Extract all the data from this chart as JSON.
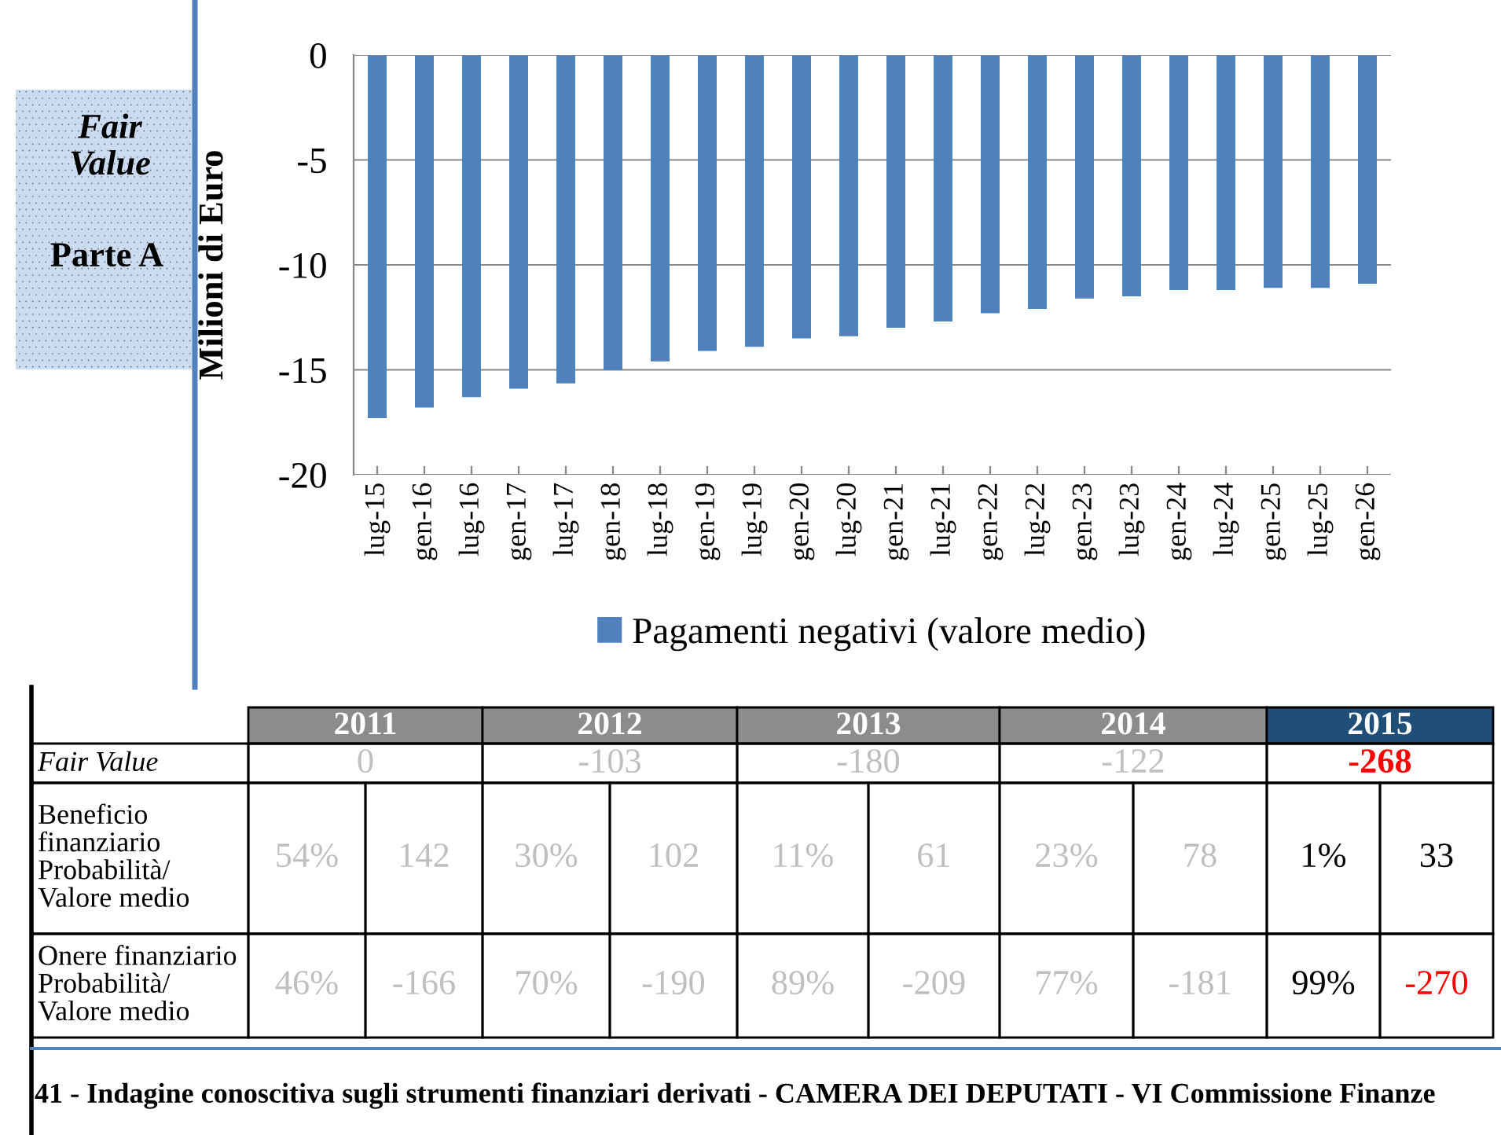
{
  "chart_data": {
    "type": "bar",
    "ylabel": "Milioni di Euro",
    "categories": [
      "lug-15",
      "gen-16",
      "lug-16",
      "gen-17",
      "lug-17",
      "gen-18",
      "lug-18",
      "gen-19",
      "lug-19",
      "gen-20",
      "lug-20",
      "gen-21",
      "lug-21",
      "gen-22",
      "lug-22",
      "gen-23",
      "lug-23",
      "gen-24",
      "lug-24",
      "gen-25",
      "lug-25",
      "gen-26"
    ],
    "series": [
      {
        "name": "Pagamenti negativi (valore medio)",
        "color": "#4f81bd",
        "values": [
          -17.3,
          -16.8,
          -16.3,
          -15.9,
          -15.65,
          -15.0,
          -14.6,
          -14.1,
          -13.9,
          -13.5,
          -13.4,
          -13.0,
          -12.7,
          -12.3,
          -12.1,
          -11.6,
          -11.5,
          -11.2,
          -11.2,
          -11.1,
          -11.1,
          -10.9
        ]
      }
    ],
    "ylim": [
      -20,
      0
    ],
    "yticks": [
      -20,
      -15,
      -10,
      -5,
      0
    ],
    "grid": "y",
    "legend": "bottom",
    "annotations": [
      "Fair Value",
      "Parte A",
      "2011",
      "2012",
      "2013",
      "2014",
      "2015",
      "Fair Value",
      "0",
      "-103",
      "-180",
      "-122",
      "-268",
      "Beneficio finanziario Probabilità/ Valore medio",
      "54%",
      "142",
      "30%",
      "102",
      "11%",
      "61",
      "23%",
      "78",
      "1%",
      "33",
      "Onere finanziario Probabilità/ Valore medio",
      "46%",
      "-166",
      "70%",
      "-190",
      "89%",
      "-209",
      "77%",
      "-181",
      "99%",
      "-270",
      "41 - Indagine conoscitiva sugli strumenti finanziari derivati - CAMERA DEI DEPUTATI - VI Commissione Finanze"
    ]
  }
}
